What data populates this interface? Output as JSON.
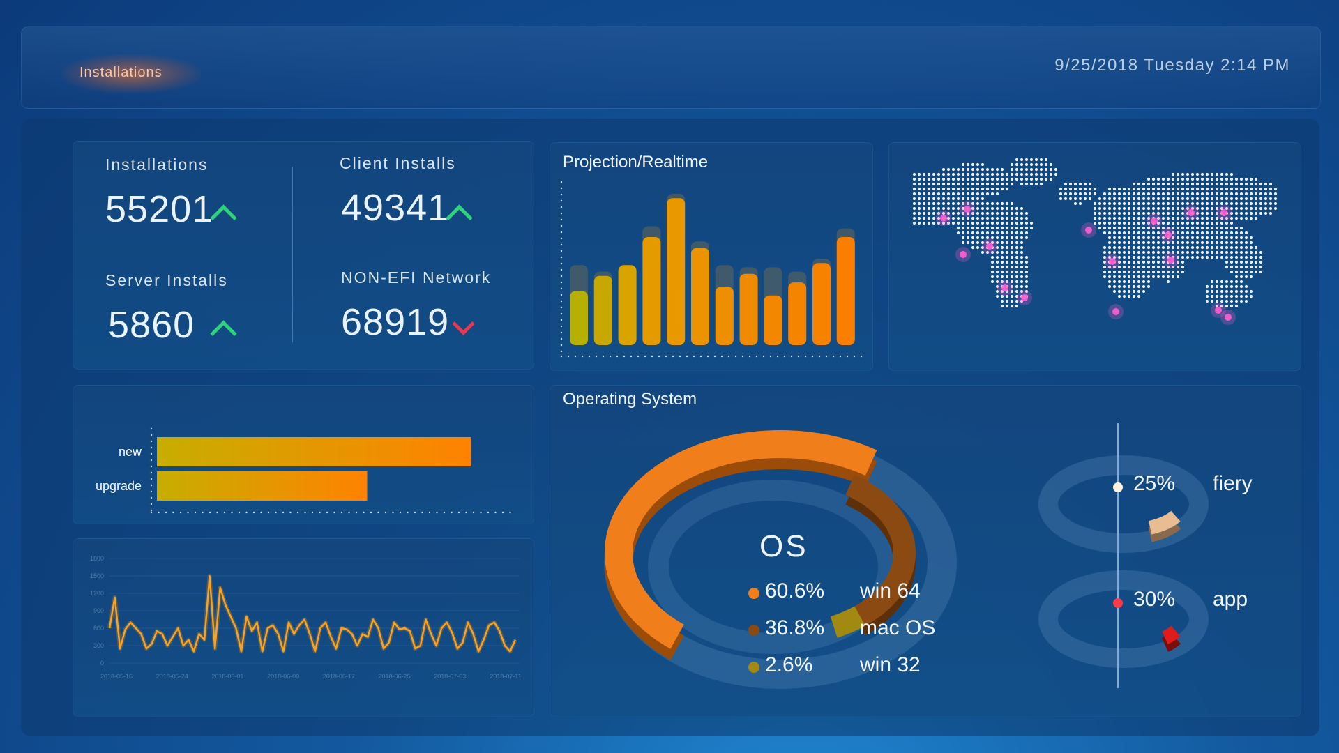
{
  "header": {
    "brand_label": "Installations",
    "datetime": "9/25/2018 Tuesday 2:14 PM"
  },
  "stats": [
    {
      "label": "Installations",
      "value": "55201",
      "trend": "up"
    },
    {
      "label": "Client Installs",
      "value": "49341",
      "trend": "up"
    },
    {
      "label": "Server Installs",
      "value": "5860",
      "trend": "up"
    },
    {
      "label": "NON-EFI Network",
      "value": "68919",
      "trend": "down"
    }
  ],
  "projection": {
    "title": "Projection/Realtime",
    "chart_data": {
      "type": "bar",
      "bars": [
        {
          "value": 50,
          "projection": 74
        },
        {
          "value": 64,
          "projection": 68
        },
        {
          "value": 74,
          "projection": 74
        },
        {
          "value": 100,
          "projection": 110
        },
        {
          "value": 136,
          "projection": 140
        },
        {
          "value": 90,
          "projection": 96
        },
        {
          "value": 54,
          "projection": 74
        },
        {
          "value": 66,
          "projection": 72
        },
        {
          "value": 46,
          "projection": 72
        },
        {
          "value": 58,
          "projection": 68
        },
        {
          "value": 76,
          "projection": 80
        },
        {
          "value": 100,
          "projection": 108
        }
      ]
    }
  },
  "world_map": {
    "hotspot_color": "#ff5fd0"
  },
  "install_type": {
    "chart_data": {
      "type": "bar",
      "orientation": "horizontal",
      "categories": [
        "new",
        "upgrade"
      ],
      "values": [
        100,
        67
      ]
    }
  },
  "trend": {
    "chart_data": {
      "type": "line",
      "y_ticks": [
        "1800",
        "1500",
        "1200",
        "900",
        "600",
        "300",
        "0"
      ],
      "x_ticks": [
        "2018-05-16",
        "2018-05-24",
        "2018-06-01",
        "2018-06-09",
        "2018-06-17",
        "2018-06-25",
        "2018-07-03",
        "2018-07-11"
      ],
      "ylim": [
        0,
        1800
      ],
      "values": [
        600,
        1130,
        250,
        580,
        700,
        600,
        500,
        250,
        330,
        550,
        500,
        300,
        450,
        600,
        300,
        400,
        200,
        500,
        400,
        1500,
        250,
        1300,
        1000,
        800,
        600,
        200,
        800,
        550,
        700,
        200,
        600,
        650,
        500,
        200,
        700,
        500,
        650,
        750,
        500,
        200,
        600,
        700,
        450,
        250,
        600,
        580,
        500,
        300,
        500,
        450,
        750,
        600,
        250,
        350,
        700,
        580,
        600,
        550,
        250,
        300,
        750,
        500,
        300,
        600,
        700,
        520,
        250,
        350,
        700,
        500,
        200,
        400,
        650,
        700,
        550,
        300,
        200,
        400
      ]
    }
  },
  "os": {
    "title": "Operating System",
    "center_label": "OS",
    "chart_data": {
      "type": "pie",
      "categories": [
        "win 64",
        "mac OS",
        "win 32"
      ],
      "values": [
        60.6,
        36.8,
        2.6
      ],
      "labels": [
        "60.6%",
        "36.8%",
        "2.6%"
      ],
      "colors": [
        "#f07f1b",
        "#8a4a12",
        "#a28a12"
      ]
    },
    "gauges": [
      {
        "pct_label": "25%",
        "name": "fiery",
        "value": 25,
        "color": "#e9bd92"
      },
      {
        "pct_label": "30%",
        "name": "app",
        "value": 30,
        "color": "#e01b1b"
      }
    ]
  }
}
